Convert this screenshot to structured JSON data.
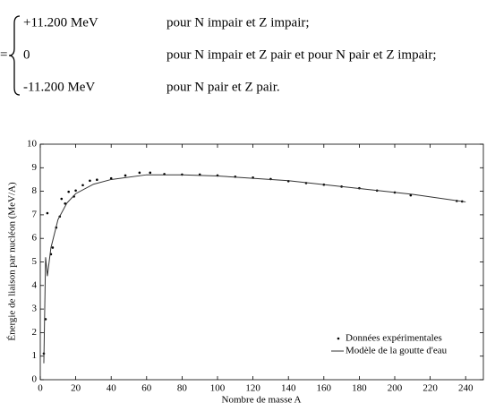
{
  "equation": {
    "lhs": "=",
    "lines": [
      {
        "value": "+11.200 MeV",
        "condition": "pour N impair et Z impair;"
      },
      {
        "value": "0",
        "condition": "pour N impair et Z pair et pour N pair et Z impair;"
      },
      {
        "value": "-11.200 MeV",
        "condition": "pour N pair et Z pair."
      }
    ]
  },
  "chart_data": {
    "type": "scatter-line",
    "xlabel": "Nombre de masse A",
    "ylabel": "Énergie de liaison par nucléon (MeV/A)",
    "xlim": [
      0,
      250
    ],
    "ylim": [
      0,
      10
    ],
    "xticks": [
      0,
      20,
      40,
      60,
      80,
      100,
      120,
      140,
      160,
      180,
      200,
      220,
      240
    ],
    "yticks": [
      0,
      1,
      2,
      3,
      4,
      5,
      6,
      7,
      8,
      9,
      10
    ],
    "legend": "lower right",
    "series": [
      {
        "name": "Données expérimentales",
        "kind": "scatter",
        "color": "#000000",
        "x": [
          2,
          3,
          4,
          6,
          7,
          9,
          11,
          12,
          14,
          16,
          19,
          20,
          24,
          28,
          32,
          40,
          48,
          56,
          62,
          70,
          80,
          90,
          100,
          110,
          120,
          130,
          140,
          150,
          160,
          170,
          180,
          190,
          200,
          209,
          235,
          238
        ],
        "values": [
          1.11,
          2.57,
          7.07,
          5.33,
          5.61,
          6.46,
          6.93,
          7.68,
          7.48,
          7.98,
          7.78,
          8.03,
          8.26,
          8.45,
          8.49,
          8.55,
          8.67,
          8.79,
          8.79,
          8.73,
          8.71,
          8.71,
          8.67,
          8.62,
          8.58,
          8.52,
          8.43,
          8.35,
          8.28,
          8.2,
          8.13,
          8.03,
          7.95,
          7.83,
          7.59,
          7.57
        ]
      },
      {
        "name": "Modèle de la goutte d'eau",
        "kind": "line",
        "color": "#333333",
        "x": [
          2,
          3,
          4,
          6,
          10,
          15,
          20,
          30,
          40,
          60,
          80,
          100,
          140,
          180,
          210,
          240
        ],
        "values": [
          0.7,
          5.2,
          4.4,
          5.6,
          6.8,
          7.5,
          7.9,
          8.3,
          8.5,
          8.7,
          8.7,
          8.65,
          8.45,
          8.12,
          7.87,
          7.55
        ]
      }
    ]
  }
}
